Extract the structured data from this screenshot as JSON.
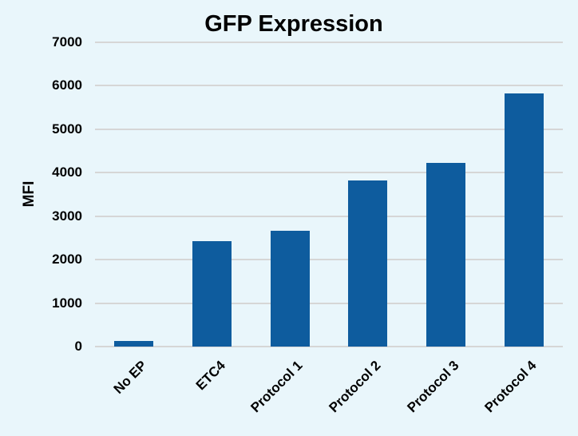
{
  "chart_data": {
    "type": "bar",
    "title": "GFP Expression",
    "xlabel": "",
    "ylabel": "MFI",
    "categories": [
      "No EP",
      "ETC4",
      "Protocol 1",
      "Protocol 2",
      "Protocol 3",
      "Protocol 4"
    ],
    "values": [
      130,
      2430,
      2660,
      3820,
      4230,
      5830
    ],
    "ylim": [
      0,
      7000
    ],
    "yticks": [
      "0",
      "1000",
      "2000",
      "3000",
      "4000",
      "5000",
      "6000",
      "7000"
    ],
    "grid": true,
    "legend": null,
    "bar_color": "#0e5c9e",
    "background_color": "#e9f6fb",
    "gridline_color": "#d6d6d6"
  }
}
